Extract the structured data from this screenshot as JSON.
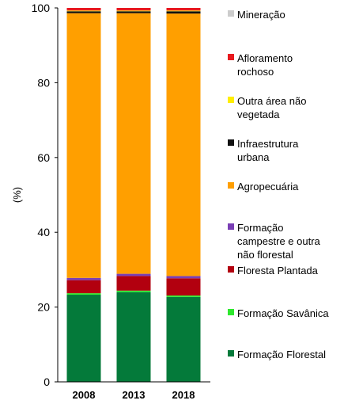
{
  "chart_data": {
    "type": "bar",
    "stacked": true,
    "categories": [
      "2008",
      "2013",
      "2018"
    ],
    "ylabel": "(%)",
    "xlabel": "",
    "ylim": [
      0,
      100
    ],
    "yticks": [
      0,
      20,
      40,
      60,
      80,
      100
    ],
    "grid": false,
    "legend_position": "right",
    "series": [
      {
        "name": "Formação Florestal",
        "color": "#047a3a",
        "values": [
          23.3,
          24.0,
          22.7
        ]
      },
      {
        "name": "Formação Savânica",
        "color": "#2ee82e",
        "values": [
          0.4,
          0.4,
          0.4
        ]
      },
      {
        "name": "Floresta Plantada",
        "color": "#b2000f",
        "values": [
          3.5,
          3.9,
          4.6
        ]
      },
      {
        "name": "Formação campestre e outra não florestal",
        "color": "#7a3fb5",
        "values": [
          0.6,
          0.6,
          0.6
        ]
      },
      {
        "name": "Agropecuária",
        "color": "#ff9f00",
        "values": [
          70.8,
          69.7,
          70.2
        ]
      },
      {
        "name": "Infraestrutura urbana",
        "color": "#111111",
        "values": [
          0.5,
          0.5,
          0.6
        ]
      },
      {
        "name": "Outra área não vegetada",
        "color": "#ffee00",
        "values": [
          0.2,
          0.2,
          0.2
        ]
      },
      {
        "name": "Afloramento rochoso",
        "color": "#e8191e",
        "values": [
          0.7,
          0.7,
          0.7
        ]
      },
      {
        "name": "Mineração",
        "color": "#cccccc",
        "values": [
          0.0,
          0.0,
          0.0
        ]
      }
    ],
    "legend": [
      {
        "lines": [
          "Mineração"
        ],
        "color": "#cccccc"
      },
      {
        "lines": [
          "Afloramento",
          "rochoso"
        ],
        "color": "#e8191e"
      },
      {
        "lines": [
          "Outra área não",
          "vegetada"
        ],
        "color": "#ffee00"
      },
      {
        "lines": [
          "Infraestrutura",
          "urbana"
        ],
        "color": "#111111"
      },
      {
        "lines": [
          "Agropecuária"
        ],
        "color": "#ff9f00"
      },
      {
        "lines": [
          "Formação",
          "campestre e outra",
          "não florestal"
        ],
        "color": "#7a3fb5"
      },
      {
        "lines": [
          "Floresta Plantada"
        ],
        "color": "#b2000f"
      },
      {
        "lines": [
          "Formação Savânica"
        ],
        "color": "#2ee82e"
      },
      {
        "lines": [
          "Formação Florestal"
        ],
        "color": "#047a3a"
      }
    ]
  }
}
